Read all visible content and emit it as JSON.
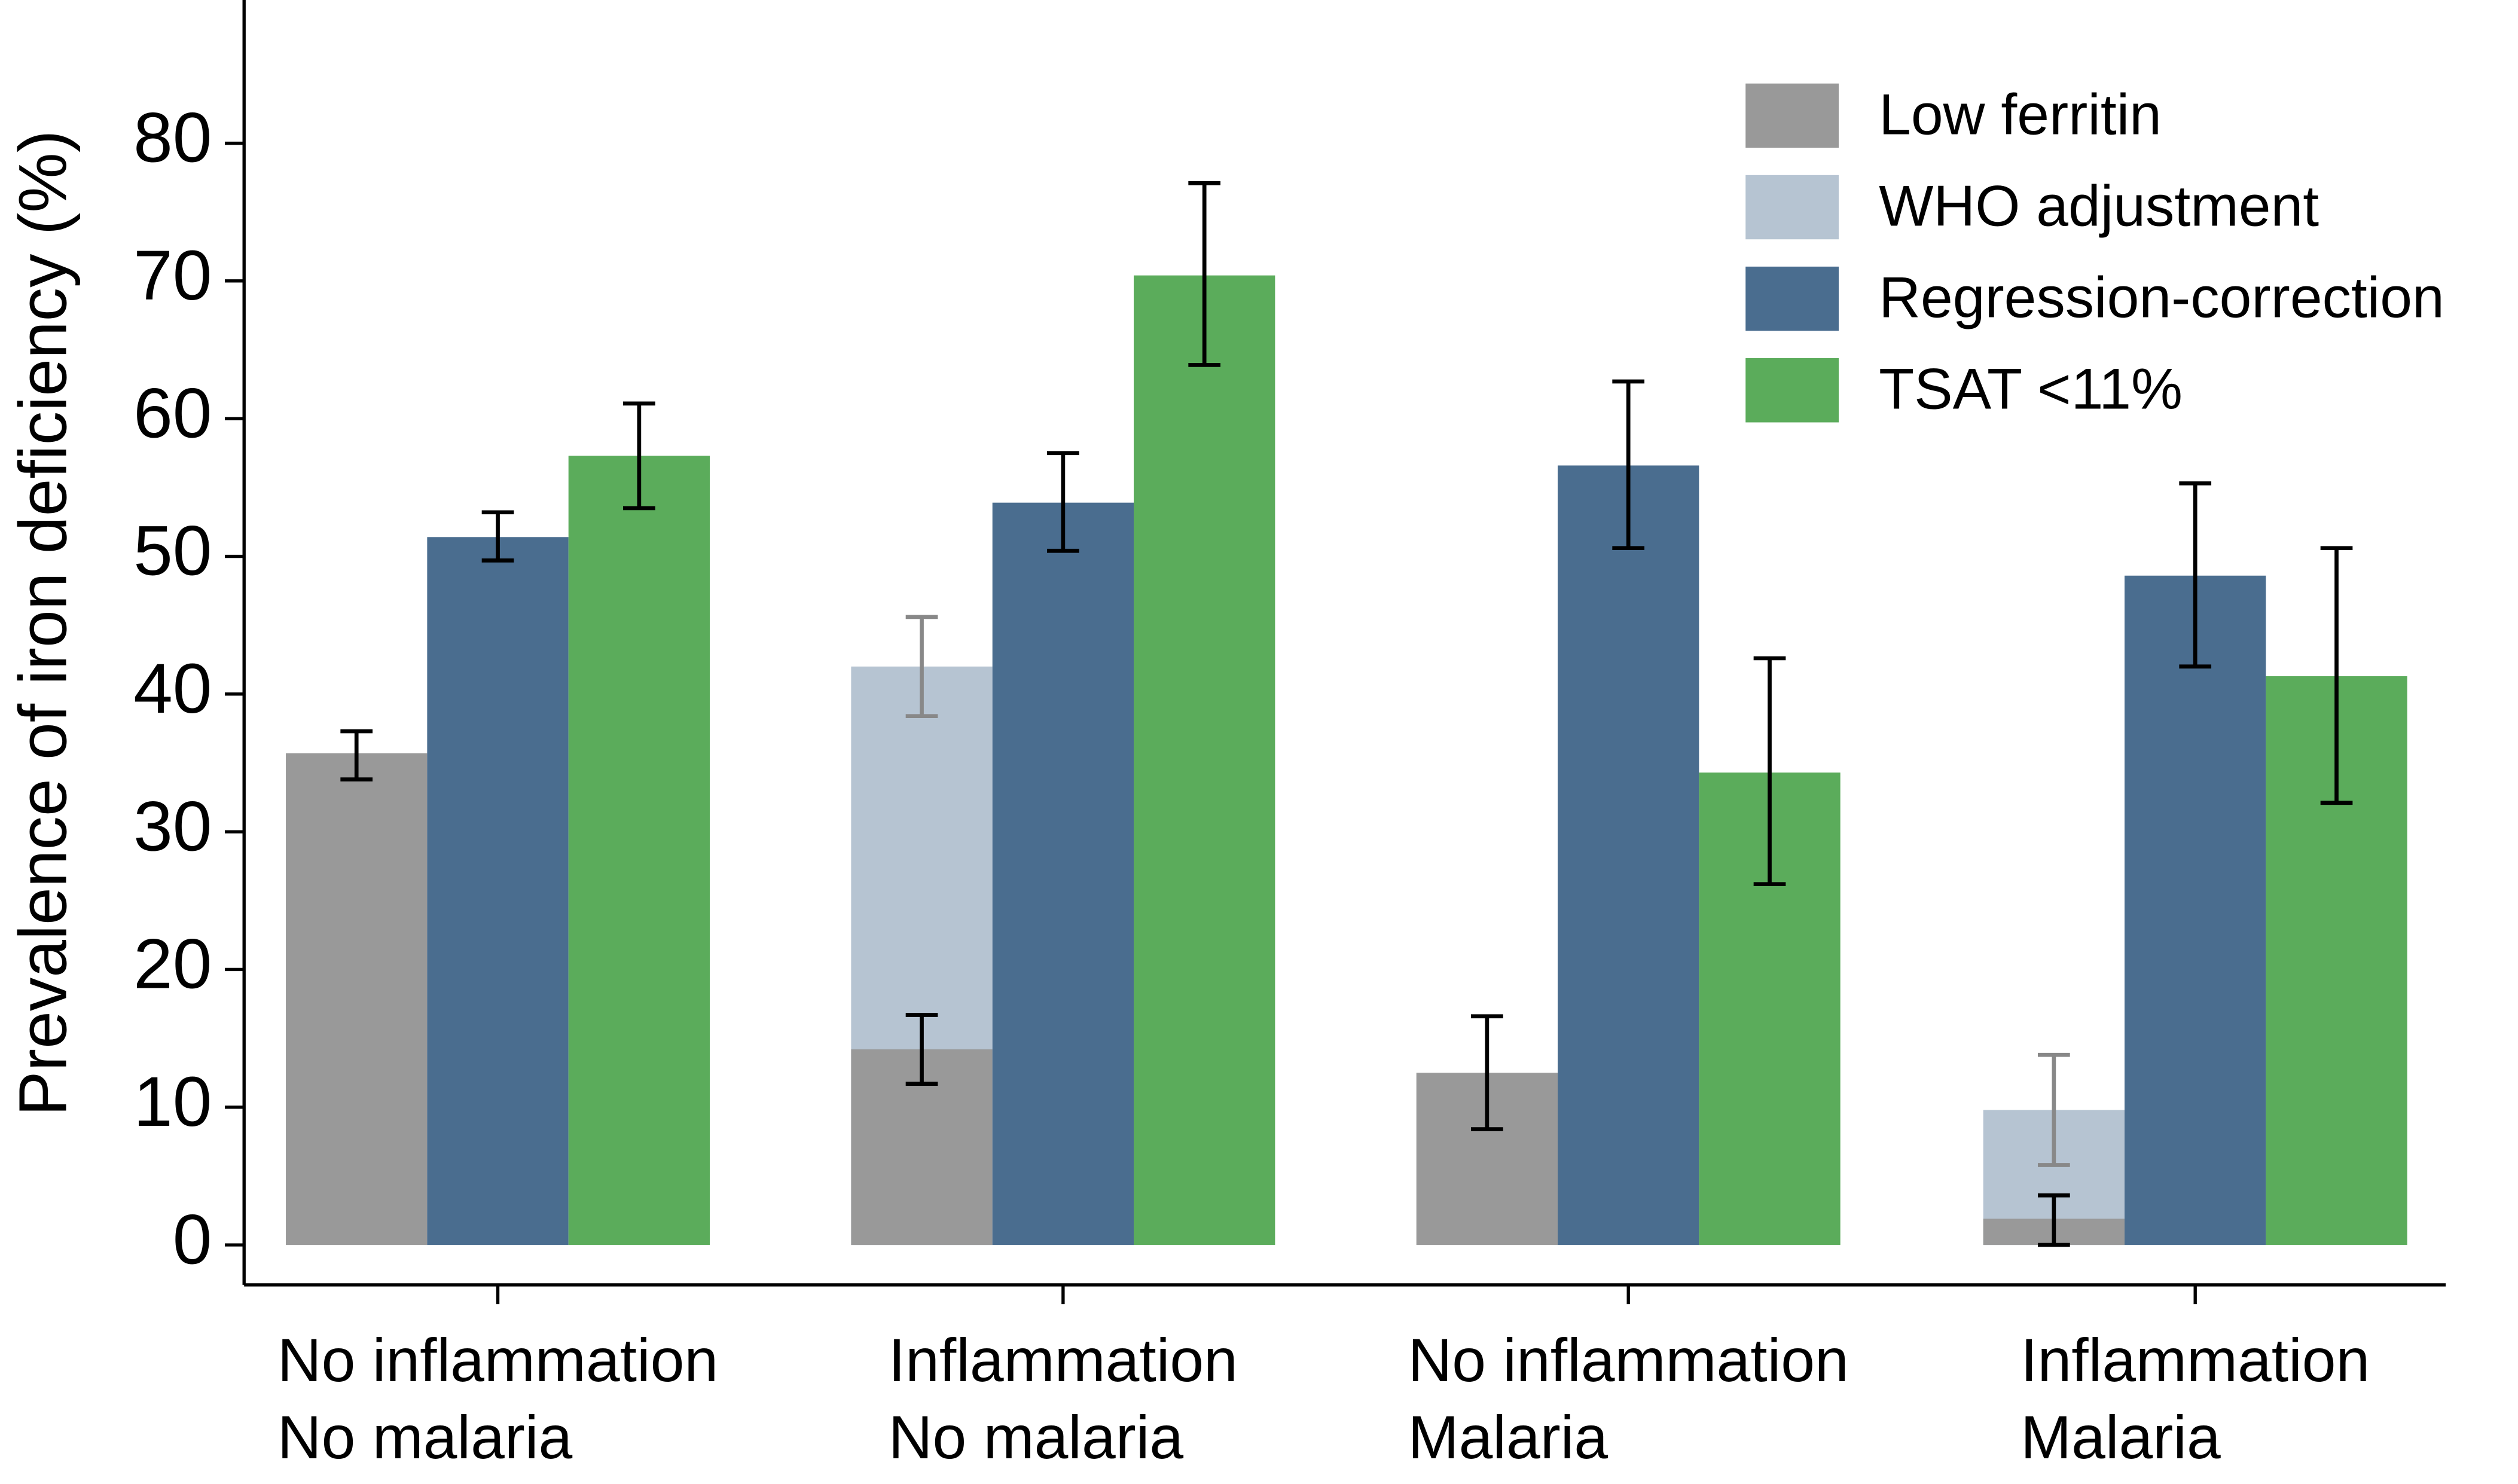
{
  "chart_data": {
    "type": "bar",
    "y_label": "Prevalence of iron deficiency (%)",
    "categories": [
      [
        "No inflammation",
        "No malaria"
      ],
      [
        "Inflammation",
        "No malaria"
      ],
      [
        "No inflammation",
        "Malaria"
      ],
      [
        "Inflammation",
        "Malaria"
      ]
    ],
    "series": [
      {
        "name": "Low ferritin",
        "color": "#999999",
        "error_color": "#000000",
        "values": [
          35.7,
          14.2,
          12.5,
          1.9
        ],
        "lower": [
          33.8,
          11.7,
          8.4,
          0
        ],
        "upper": [
          37.3,
          16.7,
          16.6,
          3.6
        ]
      },
      {
        "name": "WHO adjustment",
        "color": "#b6c4d2",
        "error_color": "#888888",
        "values": [
          null,
          42.0,
          null,
          9.8
        ],
        "lower": [
          null,
          38.4,
          null,
          5.8
        ],
        "upper": [
          null,
          45.6,
          null,
          13.8
        ]
      },
      {
        "name": "Regression-correction",
        "color": "#4a6d8f",
        "error_color": "#000000",
        "values": [
          51.4,
          53.9,
          56.6,
          48.6
        ],
        "lower": [
          49.7,
          50.4,
          50.6,
          42.0
        ],
        "upper": [
          53.2,
          57.5,
          62.7,
          55.3
        ]
      },
      {
        "name": "TSAT <11%",
        "color": "#5bac5b",
        "error_color": "#000000",
        "values": [
          57.3,
          70.4,
          34.3,
          41.3
        ],
        "lower": [
          53.5,
          63.9,
          26.2,
          32.1
        ],
        "upper": [
          61.1,
          77.1,
          42.6,
          50.6
        ]
      }
    ],
    "ylim": [
      -2.9,
      90.4
    ],
    "yticks": [
      0,
      10,
      20,
      30,
      40,
      50,
      60,
      70,
      80
    ],
    "legend": "upper right"
  }
}
